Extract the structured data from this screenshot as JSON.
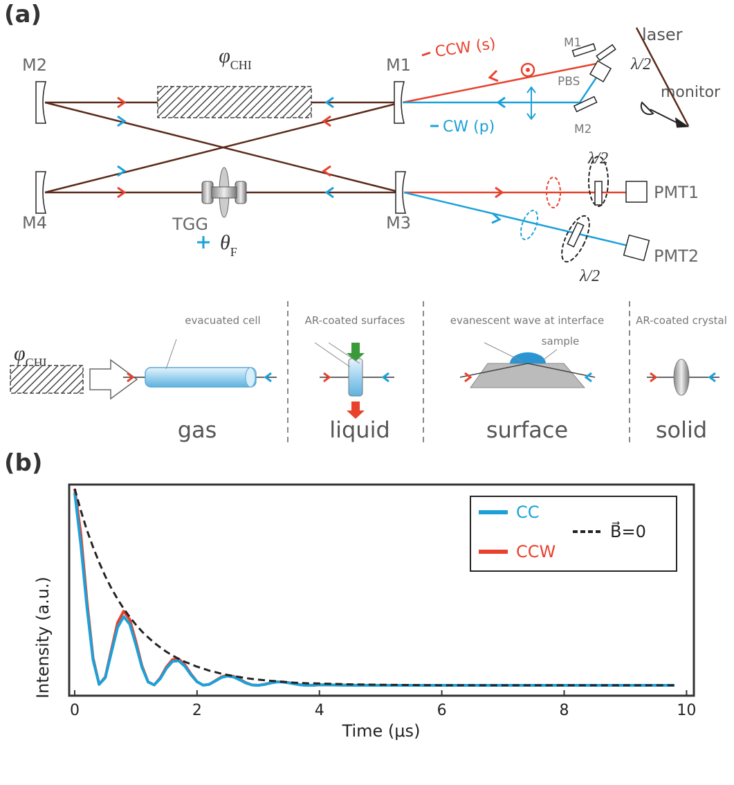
{
  "panel_a": {
    "label": "(a)",
    "mirrors": {
      "m2": "M2",
      "m1": "M1",
      "m4": "M4",
      "m3": "M3"
    },
    "chiral_sample": {
      "symbol": "φ",
      "subscript": "CHI"
    },
    "faraday": {
      "element": "TGG",
      "symbol": "θ",
      "subscript": "F"
    },
    "beams": {
      "ccw": "CCW (s)",
      "cw": "CW (p)"
    },
    "input": {
      "m1": "M1",
      "m2": "M2",
      "pbs": "PBS",
      "laser": "laser",
      "waveplate": "λ/2",
      "monitor": "monitor"
    },
    "detection": {
      "pmt1": "PMT1",
      "pmt2": "PMT2",
      "waveplate1": "λ/2",
      "waveplate2": "λ/2"
    },
    "sample_types": {
      "chiral_sample": {
        "symbol": "φ",
        "subscript": "CHI"
      },
      "gas": {
        "label": "gas",
        "note": "evacuated cell"
      },
      "liquid": {
        "label": "liquid",
        "note": "AR-coated surfaces"
      },
      "surface": {
        "label": "surface",
        "note": "evanescent wave at interface",
        "note2": "sample"
      },
      "solid": {
        "label": "solid",
        "note": "AR-coated crystal"
      }
    }
  },
  "panel_b_label": "(b)",
  "chart_data": {
    "type": "line",
    "xlabel": "Time (μs)",
    "ylabel": "Intensity (a.u.)",
    "x": [
      0,
      0.1,
      0.2,
      0.3,
      0.4,
      0.5,
      0.6,
      0.7,
      0.8,
      0.9,
      1.0,
      1.1,
      1.2,
      1.3,
      1.4,
      1.5,
      1.6,
      1.7,
      1.8,
      1.9,
      2.0,
      2.1,
      2.2,
      2.3,
      2.4,
      2.5,
      2.6,
      2.7,
      2.8,
      2.9,
      3.0,
      3.1,
      3.2,
      3.3,
      3.4,
      3.5,
      3.6,
      3.7,
      3.8,
      3.9,
      4.0,
      4.5,
      5,
      6,
      7,
      8,
      9,
      9.8
    ],
    "series": [
      {
        "name": "CC",
        "color": "#1ba1d8",
        "linestyle": "solid",
        "values": [
          0.98,
          0.73,
          0.429,
          0.173,
          0.055,
          0.087,
          0.208,
          0.329,
          0.382,
          0.345,
          0.246,
          0.137,
          0.066,
          0.052,
          0.083,
          0.132,
          0.166,
          0.169,
          0.142,
          0.101,
          0.067,
          0.051,
          0.055,
          0.071,
          0.088,
          0.095,
          0.09,
          0.076,
          0.061,
          0.052,
          0.05,
          0.054,
          0.061,
          0.066,
          0.066,
          0.062,
          0.057,
          0.052,
          0.05,
          0.051,
          0.053,
          0.05,
          0.05,
          0.05,
          0.05,
          0.05,
          0.05,
          0.05
        ]
      },
      {
        "name": "CCW",
        "color": "#e8412c",
        "linestyle": "solid",
        "values": [
          1.0,
          0.784,
          0.46,
          0.183,
          0.055,
          0.09,
          0.221,
          0.352,
          0.408,
          0.368,
          0.262,
          0.144,
          0.067,
          0.052,
          0.087,
          0.139,
          0.175,
          0.178,
          0.149,
          0.105,
          0.068,
          0.051,
          0.055,
          0.073,
          0.091,
          0.099,
          0.093,
          0.079,
          0.063,
          0.052,
          0.05,
          0.055,
          0.062,
          0.067,
          0.067,
          0.063,
          0.057,
          0.053,
          0.05,
          0.05,
          0.053,
          0.051,
          0.05,
          0.05,
          0.05,
          0.05,
          0.05,
          0.05
        ]
      },
      {
        "name": "B⃗=0",
        "color": "#222222",
        "linestyle": "dashed",
        "values": [
          1.0,
          0.895,
          0.8,
          0.718,
          0.644,
          0.577,
          0.519,
          0.467,
          0.421,
          0.38,
          0.343,
          0.31,
          0.282,
          0.256,
          0.233,
          0.212,
          0.194,
          0.178,
          0.164,
          0.152,
          0.14,
          0.131,
          0.121,
          0.114,
          0.106,
          0.1,
          0.095,
          0.09,
          0.085,
          0.081,
          0.078,
          0.075,
          0.072,
          0.07,
          0.067,
          0.065,
          0.063,
          0.062,
          0.06,
          0.06,
          0.059,
          0.055,
          0.053,
          0.05,
          0.05,
          0.05,
          0.05,
          0.05
        ]
      }
    ],
    "xlim": [
      -0.09,
      10.12
    ],
    "ylim": [
      0,
      1.02
    ],
    "xticks": [
      0,
      2,
      4,
      6,
      8,
      10
    ],
    "grid": false,
    "legend": "upper right"
  }
}
